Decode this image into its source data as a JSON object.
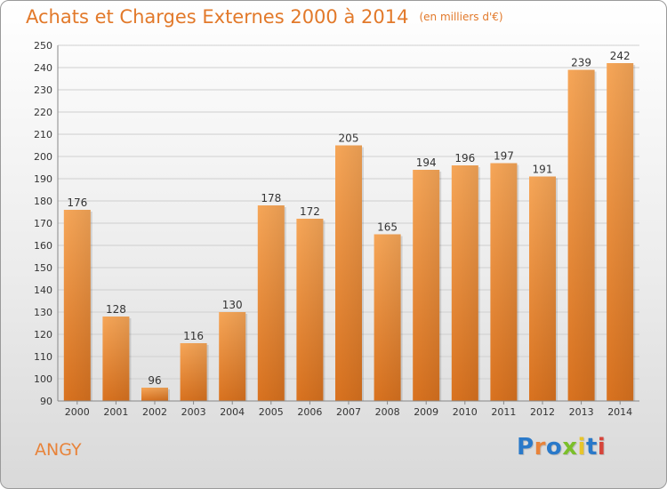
{
  "chart_data": {
    "type": "bar",
    "title": "Achats et Charges Externes 2000 à 2014",
    "unit": "(en milliers d'€)",
    "categories": [
      "2000",
      "2001",
      "2002",
      "2003",
      "2004",
      "2005",
      "2006",
      "2007",
      "2008",
      "2009",
      "2010",
      "2011",
      "2012",
      "2013",
      "2014"
    ],
    "values": [
      176,
      128,
      96,
      116,
      130,
      178,
      172,
      205,
      165,
      194,
      196,
      197,
      191,
      239,
      242
    ],
    "ylim": [
      90,
      250
    ],
    "yticks": [
      90,
      100,
      110,
      120,
      130,
      140,
      150,
      160,
      170,
      180,
      190,
      200,
      210,
      220,
      230,
      240,
      250
    ],
    "grid": true,
    "bar_color": "#e98a35"
  },
  "footer": {
    "location": "ANGY",
    "logo_text": "Proxiti"
  }
}
